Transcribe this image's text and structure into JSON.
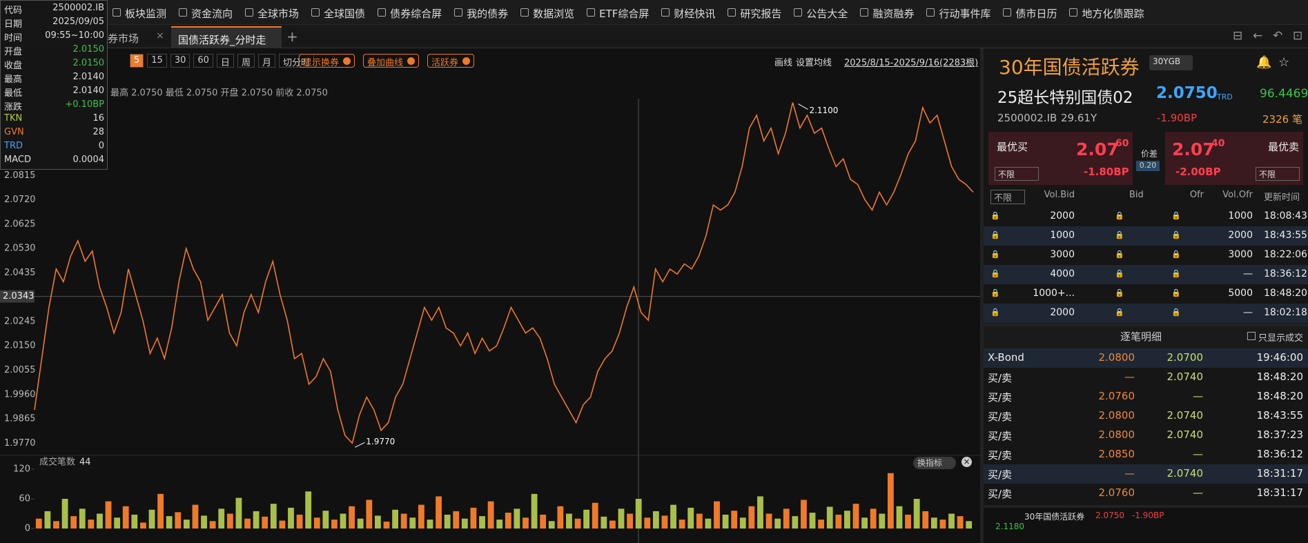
{
  "menu": [
    "板块监测",
    "资金流向",
    "全球市场",
    "全球国债",
    "债券综合屏",
    "我的债券",
    "数据浏览",
    "ETF综合屏",
    "财经快讯",
    "研究报告",
    "公告大全",
    "融资融券",
    "行动事件库",
    "债市日历",
    "地方化债跟踪"
  ],
  "tabs": [
    "券市场",
    "国债活跃券_分时走"
  ],
  "info_box": [
    {
      "label": "代码",
      "value": "2500002.IB",
      "color": "#dddddd"
    },
    {
      "label": "日期",
      "value": "2025/09/05",
      "color": "#dddddd"
    },
    {
      "label": "时间",
      "value": "09:55~10:00",
      "color": "#dddddd"
    },
    {
      "label": "开盘",
      "value": "2.0150",
      "color": "#3cc24a"
    },
    {
      "label": "收盘",
      "value": "2.0150",
      "color": "#3cc24a"
    },
    {
      "label": "最高",
      "value": "2.0140",
      "color": "#dddddd"
    },
    {
      "label": "最低",
      "value": "2.0140",
      "color": "#dddddd"
    },
    {
      "label": "涨跌",
      "value": "+0.10BP",
      "color": "#3cc24a"
    },
    {
      "label": "TKN",
      "value": "16",
      "color": "#dddddd",
      "label_color": "#b5cc3c"
    },
    {
      "label": "GVN",
      "value": "28",
      "color": "#dddddd",
      "label_color": "#f07a28"
    },
    {
      "label": "TRD",
      "value": "0",
      "color": "#dddddd",
      "label_color": "#3ea6ff"
    },
    {
      "label": "MACD",
      "value": "0.0004",
      "color": "#dddddd"
    }
  ],
  "toolbar": {
    "periods": [
      "5",
      "15",
      "30",
      "60",
      "日",
      "周",
      "月",
      "切分时"
    ],
    "buttons": [
      "显示换券",
      "叠加曲线",
      "活跃券"
    ],
    "right": [
      "画线",
      "设置均线",
      "2025/8/15-2025/9/16(2283根)"
    ]
  },
  "chart_data": [
    {
      "type": "line",
      "subtitle": "最高 2.0750 最低 2.0750 开盘 2.0750 前收 2.0750",
      "color": "#f07a28",
      "values": [
        1.99,
        2.01,
        2.03,
        2.045,
        2.04,
        2.05,
        2.056,
        2.048,
        2.052,
        2.038,
        2.03,
        2.02,
        2.028,
        2.045,
        2.035,
        2.025,
        2.012,
        2.018,
        2.01,
        2.022,
        2.04,
        2.053,
        2.045,
        2.04,
        2.025,
        2.03,
        2.035,
        2.02,
        2.015,
        2.028,
        2.035,
        2.028,
        2.04,
        2.048,
        2.035,
        2.025,
        2.01,
        2.012,
        2.0,
        2.003,
        2.01,
        2.005,
        1.99,
        1.98,
        1.977,
        1.988,
        1.995,
        1.99,
        1.982,
        1.985,
        1.995,
        2.0,
        2.01,
        2.02,
        2.03,
        2.025,
        2.03,
        2.022,
        2.02,
        2.015,
        2.02,
        2.012,
        2.018,
        2.013,
        2.015,
        2.022,
        2.03,
        2.025,
        2.02,
        2.022,
        2.018,
        2.01,
        2.0,
        1.995,
        1.99,
        1.985,
        1.992,
        1.995,
        2.005,
        2.01,
        2.013,
        2.02,
        2.03,
        2.038,
        2.028,
        2.025,
        2.045,
        2.04,
        2.045,
        2.043,
        2.047,
        2.045,
        2.05,
        2.058,
        2.07,
        2.068,
        2.07,
        2.075,
        2.085,
        2.1,
        2.105,
        2.095,
        2.1,
        2.09,
        2.098,
        2.11,
        2.1,
        2.105,
        2.098,
        2.1,
        2.092,
        2.085,
        2.088,
        2.08,
        2.078,
        2.072,
        2.068,
        2.075,
        2.07,
        2.075,
        2.082,
        2.09,
        2.095,
        2.108,
        2.102,
        2.105,
        2.095,
        2.085,
        2.08,
        2.078,
        2.075
      ],
      "ylim": [
        1.9725,
        2.1115
      ],
      "yticks": [
        2.0815,
        {
          "value": 2.072,
          "label": "2.0720"
        },
        2.0625,
        {
          "value": 2.053,
          "label": "2.0530"
        },
        2.0435,
        2.0245,
        {
          "value": 2.015,
          "label": "2.0150"
        },
        2.0055,
        {
          "value": 1.996,
          "label": "1.9960"
        },
        1.9865,
        {
          "value": 1.977,
          "label": "1.9770"
        }
      ],
      "crosshair": 2.0343,
      "annotations": [
        "2.1100",
        "1.9770"
      ]
    },
    {
      "type": "bar",
      "title": "成交笔数",
      "current": "44",
      "button": "换指标",
      "colors": [
        "#f07a28",
        "#a8c04a"
      ],
      "values": [
        20,
        35,
        15,
        60,
        25,
        40,
        18,
        30,
        55,
        22,
        45,
        28,
        12,
        38,
        70,
        25,
        33,
        18,
        48,
        26,
        15,
        40,
        30,
        62,
        20,
        35,
        24,
        50,
        16,
        42,
        28,
        75,
        22,
        36,
        18,
        30,
        45,
        20,
        58,
        26,
        14,
        38,
        30,
        22,
        48,
        18,
        65,
        28,
        35,
        20,
        42,
        25,
        55,
        18,
        32,
        40,
        22,
        70,
        28,
        15,
        45,
        30,
        20,
        38,
        52,
        24,
        16,
        40,
        30,
        60,
        22,
        35,
        26,
        48,
        18,
        42,
        30,
        20,
        55,
        28,
        36,
        22,
        45,
        65,
        30,
        20,
        40,
        25,
        58,
        32,
        18,
        44,
        28,
        36,
        50,
        22,
        40,
        30,
        112,
        45,
        28,
        60,
        35,
        22,
        18,
        30,
        25,
        15
      ],
      "ylim": [
        0,
        135
      ],
      "yticks": [
        0,
        60,
        120
      ]
    }
  ],
  "right_panel": {
    "title": "30年国债活跃券",
    "selector": "30YGB",
    "bond_name": "25超长特别国债02",
    "price": "2.0750",
    "price_src": "TRD",
    "clean_price": "96.4469",
    "code": "2500002.IB",
    "tenor": "29.61Y",
    "change": "-1.90BP",
    "count": "2326 笔",
    "best_bid": {
      "label": "最优买",
      "big": "2.07",
      "small": "60",
      "change": "-1.80BP",
      "filter": "不限"
    },
    "spread": {
      "label": "价差",
      "value": "0.20"
    },
    "best_ofr": {
      "label": "最优卖",
      "big": "2.07",
      "small": "40",
      "change": "-2.00BP",
      "filter": "不限"
    },
    "depth": {
      "headers": [
        "不限",
        "Vol.Bid",
        "Bid",
        "Ofr",
        "Vol.Ofr",
        "更新时间"
      ],
      "rows": [
        [
          "2000",
          "1000",
          "18:08:43"
        ],
        [
          "1000",
          "2000",
          "18:43:55"
        ],
        [
          "3000",
          "3000",
          "18:22:06"
        ],
        [
          "4000",
          "—",
          "18:36:12"
        ],
        [
          "1000+...",
          "5000",
          "18:48:20"
        ],
        [
          "2000",
          "—",
          "18:02:18"
        ]
      ]
    },
    "ticks": {
      "title": "逐笔明细",
      "filter": "只显示成交",
      "rows": [
        [
          "X-Bond",
          "2.0800",
          "2.0700",
          "19:46:00"
        ],
        [
          "买/卖",
          "—",
          "2.0740",
          "18:48:20"
        ],
        [
          "买/卖",
          "2.0760",
          "—",
          "18:48:20"
        ],
        [
          "买/卖",
          "2.0800",
          "2.0740",
          "18:43:55"
        ],
        [
          "买/卖",
          "2.0800",
          "2.0740",
          "18:37:23"
        ],
        [
          "买/卖",
          "2.0850",
          "—",
          "18:36:12"
        ],
        [
          "买/卖",
          "—",
          "2.0740",
          "18:31:17"
        ],
        [
          "买/卖",
          "2.0760",
          "—",
          "18:31:17"
        ]
      ]
    },
    "mini": {
      "title": "30年国债活跃券",
      "price": "2.0750",
      "change": "-1.90BP",
      "high": "2.1180"
    }
  }
}
